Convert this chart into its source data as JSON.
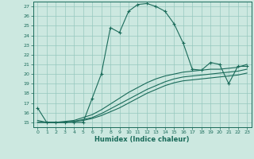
{
  "xlabel": "Humidex (Indice chaleur)",
  "ylabel": "",
  "bg_color": "#cce8e0",
  "grid_color": "#96c8be",
  "line_color": "#1a6b5a",
  "xlim": [
    -0.5,
    23.5
  ],
  "ylim": [
    14.5,
    27.5
  ],
  "xticks": [
    0,
    1,
    2,
    3,
    4,
    5,
    6,
    7,
    8,
    9,
    10,
    11,
    12,
    13,
    14,
    15,
    16,
    17,
    18,
    19,
    20,
    21,
    22,
    23
  ],
  "yticks": [
    15,
    16,
    17,
    18,
    19,
    20,
    21,
    22,
    23,
    24,
    25,
    26,
    27
  ],
  "humidex_main": [
    16.5,
    15.0,
    15.0,
    15.0,
    15.0,
    15.0,
    17.5,
    20.0,
    24.8,
    24.3,
    26.5,
    27.2,
    27.3,
    27.0,
    26.5,
    25.2,
    23.2,
    20.5,
    20.4,
    21.2,
    21.0,
    19.0,
    20.8,
    20.8
  ],
  "line2": [
    15.2,
    15.0,
    15.0,
    15.1,
    15.2,
    15.5,
    15.8,
    16.3,
    16.9,
    17.5,
    18.1,
    18.6,
    19.1,
    19.5,
    19.8,
    20.0,
    20.2,
    20.3,
    20.4,
    20.5,
    20.5,
    20.6,
    20.7,
    21.0
  ],
  "line3": [
    15.0,
    15.0,
    15.0,
    15.0,
    15.1,
    15.3,
    15.5,
    15.9,
    16.4,
    16.9,
    17.4,
    17.9,
    18.4,
    18.8,
    19.2,
    19.5,
    19.7,
    19.8,
    19.9,
    20.0,
    20.1,
    20.2,
    20.3,
    20.5
  ],
  "line4": [
    15.0,
    15.0,
    15.0,
    15.0,
    15.1,
    15.2,
    15.4,
    15.7,
    16.1,
    16.5,
    17.0,
    17.5,
    18.0,
    18.4,
    18.8,
    19.1,
    19.3,
    19.4,
    19.5,
    19.6,
    19.7,
    19.8,
    19.9,
    20.1
  ]
}
